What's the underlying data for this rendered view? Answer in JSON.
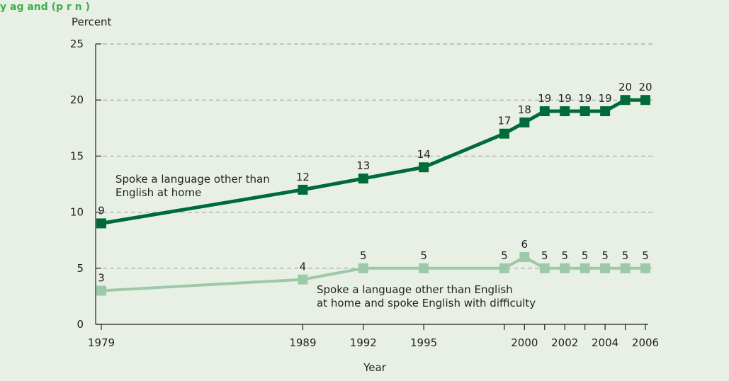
{
  "caption_fragment": "y  ag  and  (p  r  n )",
  "chart_data": {
    "type": "line",
    "ylabel": "Percent",
    "xlabel": "Year",
    "ylim": [
      0,
      25
    ],
    "y_ticks": [
      0,
      5,
      10,
      15,
      20,
      25
    ],
    "x_ticks": [
      1979,
      1989,
      1992,
      1995,
      2000,
      2002,
      2004,
      2006
    ],
    "grid": "dashed-horizontal",
    "colors": {
      "series_1": "#006b3a",
      "series_2": "#9cc9a8"
    },
    "x": [
      1979,
      1989,
      1992,
      1995,
      1999,
      2000,
      2001,
      2002,
      2003,
      2004,
      2005,
      2006
    ],
    "series": [
      {
        "name": "Spoke a language other than English at home",
        "name_lines": [
          "Spoke a language other than",
          "English at home"
        ],
        "values": [
          9,
          12,
          13,
          14,
          17,
          18,
          19,
          19,
          19,
          19,
          20,
          20
        ]
      },
      {
        "name": "Spoke a language other than English at home and spoke English with difficulty",
        "name_lines": [
          "Spoke a language other than English",
          "at home and spoke English with difficulty"
        ],
        "values": [
          3,
          4,
          5,
          5,
          5,
          6,
          5,
          5,
          5,
          5,
          5,
          5
        ]
      }
    ]
  }
}
